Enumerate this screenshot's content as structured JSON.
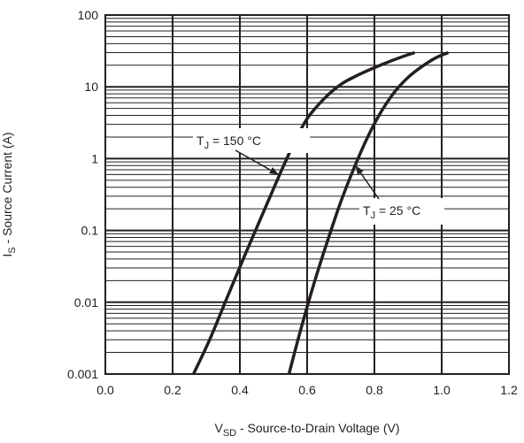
{
  "chart_data": {
    "type": "line",
    "title": "",
    "xlabel": {
      "main": "V",
      "sub": "SD",
      "rest": " - Source-to-Drain Voltage (V)"
    },
    "ylabel": {
      "main": "I",
      "sub": "S",
      "rest": " - Source Current (A)"
    },
    "xlim": [
      0.0,
      1.2
    ],
    "ylim": [
      0.001,
      100
    ],
    "yscale": "log",
    "grid": true,
    "x_ticks": [
      "0.0",
      "0.2",
      "0.4",
      "0.6",
      "0.8",
      "1.0",
      "1.2"
    ],
    "y_ticks": [
      "0.001",
      "0.01",
      "0.1",
      "1",
      "10",
      "100"
    ],
    "series": [
      {
        "name": "T_J = 150 °C",
        "x": [
          0.262,
          0.31,
          0.36,
          0.41,
          0.46,
          0.5,
          0.53,
          0.56,
          0.6,
          0.65,
          0.7,
          0.75,
          0.8,
          0.85,
          0.9,
          0.92
        ],
        "y": [
          0.001,
          0.003,
          0.011,
          0.04,
          0.14,
          0.38,
          0.8,
          1.6,
          3.6,
          6.8,
          10.8,
          14.5,
          18.5,
          23,
          28,
          30
        ]
      },
      {
        "name": "T_J = 25 °C",
        "x": [
          0.546,
          0.58,
          0.62,
          0.66,
          0.7,
          0.74,
          0.78,
          0.82,
          0.86,
          0.9,
          0.94,
          0.98,
          1.02
        ],
        "y": [
          0.001,
          0.004,
          0.018,
          0.07,
          0.25,
          0.75,
          2.0,
          4.5,
          8.5,
          13.5,
          19,
          25,
          30
        ]
      }
    ],
    "annotations": [
      {
        "label": {
          "main": "T",
          "sub": "J",
          "rest": " = 150 °C"
        },
        "target_x": 0.515,
        "target_y": 0.6
      },
      {
        "label": {
          "main": "T",
          "sub": "J",
          "rest": " = 25 °C"
        },
        "target_x": 0.744,
        "target_y": 0.8
      }
    ]
  }
}
